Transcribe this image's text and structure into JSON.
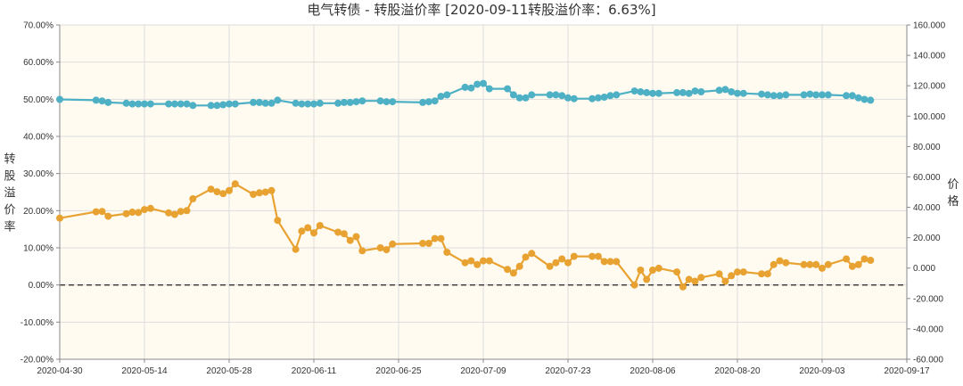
{
  "chart_data": {
    "type": "line",
    "title": "电气转债 - 转股溢价率 [2020-09-11转股溢价率：6.63%]",
    "ylabel_left": "转股溢价率",
    "ylabel_right": "价格",
    "xlabels": [
      "2020-04-30",
      "2020-05-14",
      "2020-05-28",
      "2020-06-11",
      "2020-06-25",
      "2020-07-09",
      "2020-07-23",
      "2020-08-06",
      "2020-08-20",
      "2020-09-03",
      "2020-09-17"
    ],
    "left_ticks": [
      "70.00%",
      "60.00%",
      "50.00%",
      "40.00%",
      "30.00%",
      "20.00%",
      "10.00%",
      "0.00%",
      "-10.00%",
      "-20.00%"
    ],
    "right_ticks": [
      "160.000",
      "140.000",
      "120.000",
      "100.000",
      "80.000",
      "60.000",
      "40.000",
      "20.000",
      "0.000",
      "-20.000",
      "-40.000",
      "-60.000"
    ],
    "x_start": "2020-04-30",
    "x_end": "2020-09-17",
    "ylim_left": [
      -20,
      70
    ],
    "ylim_right": [
      -60,
      160
    ],
    "reference_line": 0,
    "grid": true,
    "colors": {
      "background": "#fffbf0",
      "grid": "#dddddd",
      "premium": "#e8a231",
      "price": "#4eb0c5",
      "reference": "#333333"
    },
    "series": [
      {
        "axis": "left",
        "color": "#e8a231",
        "x": [
          "2020-04-30",
          "2020-05-06",
          "2020-05-07",
          "2020-05-08",
          "2020-05-11",
          "2020-05-12",
          "2020-05-13",
          "2020-05-14",
          "2020-05-15",
          "2020-05-18",
          "2020-05-19",
          "2020-05-20",
          "2020-05-21",
          "2020-05-22",
          "2020-05-25",
          "2020-05-26",
          "2020-05-27",
          "2020-05-28",
          "2020-05-29",
          "2020-06-01",
          "2020-06-02",
          "2020-06-03",
          "2020-06-04",
          "2020-06-05",
          "2020-06-08",
          "2020-06-09",
          "2020-06-10",
          "2020-06-11",
          "2020-06-12",
          "2020-06-15",
          "2020-06-16",
          "2020-06-17",
          "2020-06-18",
          "2020-06-19",
          "2020-06-22",
          "2020-06-23",
          "2020-06-24",
          "2020-06-29",
          "2020-06-30",
          "2020-07-01",
          "2020-07-02",
          "2020-07-03",
          "2020-07-06",
          "2020-07-07",
          "2020-07-08",
          "2020-07-09",
          "2020-07-10",
          "2020-07-13",
          "2020-07-14",
          "2020-07-15",
          "2020-07-16",
          "2020-07-17",
          "2020-07-20",
          "2020-07-21",
          "2020-07-22",
          "2020-07-23",
          "2020-07-24",
          "2020-07-27",
          "2020-07-28",
          "2020-07-29",
          "2020-07-30",
          "2020-07-31",
          "2020-08-03",
          "2020-08-04",
          "2020-08-05",
          "2020-08-06",
          "2020-08-07",
          "2020-08-10",
          "2020-08-11",
          "2020-08-12",
          "2020-08-13",
          "2020-08-14",
          "2020-08-17",
          "2020-08-18",
          "2020-08-19",
          "2020-08-20",
          "2020-08-21",
          "2020-08-24",
          "2020-08-25",
          "2020-08-26",
          "2020-08-27",
          "2020-08-28",
          "2020-08-31",
          "2020-09-01",
          "2020-09-02",
          "2020-09-03",
          "2020-09-04",
          "2020-09-07",
          "2020-09-08",
          "2020-09-09",
          "2020-09-10",
          "2020-09-11"
        ],
        "y": [
          18.0,
          19.7,
          19.8,
          18.5,
          19.2,
          19.6,
          19.5,
          20.3,
          20.6,
          19.4,
          19.0,
          19.8,
          20.0,
          23.2,
          25.8,
          25.1,
          24.6,
          25.4,
          27.2,
          24.4,
          24.8,
          25.0,
          25.4,
          17.4,
          9.6,
          14.5,
          15.4,
          14.0,
          16.0,
          14.2,
          13.8,
          12.0,
          13.0,
          9.2,
          10.0,
          9.5,
          11.0,
          11.2,
          11.2,
          12.5,
          12.5,
          8.8,
          6.0,
          6.5,
          5.5,
          6.5,
          6.5,
          4.2,
          3.2,
          5.0,
          7.5,
          8.5,
          5.0,
          6.0,
          7.0,
          6.0,
          7.7,
          7.7,
          7.7,
          6.3,
          6.3,
          6.3,
          0.0,
          4.0,
          1.5,
          4.0,
          4.5,
          3.5,
          -0.5,
          1.5,
          1.0,
          2.0,
          3.0,
          1.0,
          2.5,
          3.5,
          3.5,
          3.0,
          3.0,
          5.5,
          6.5,
          6.0,
          5.5,
          5.5,
          5.5,
          4.5,
          5.5,
          7.0,
          5.0,
          5.5,
          7.0,
          6.63
        ]
      },
      {
        "axis": "right",
        "color": "#4eb0c5",
        "x": [
          "2020-04-30",
          "2020-05-06",
          "2020-05-07",
          "2020-05-08",
          "2020-05-11",
          "2020-05-12",
          "2020-05-13",
          "2020-05-14",
          "2020-05-15",
          "2020-05-18",
          "2020-05-19",
          "2020-05-20",
          "2020-05-21",
          "2020-05-22",
          "2020-05-25",
          "2020-05-26",
          "2020-05-27",
          "2020-05-28",
          "2020-05-29",
          "2020-06-01",
          "2020-06-02",
          "2020-06-03",
          "2020-06-04",
          "2020-06-05",
          "2020-06-08",
          "2020-06-09",
          "2020-06-10",
          "2020-06-11",
          "2020-06-12",
          "2020-06-15",
          "2020-06-16",
          "2020-06-17",
          "2020-06-18",
          "2020-06-19",
          "2020-06-22",
          "2020-06-23",
          "2020-06-24",
          "2020-06-29",
          "2020-06-30",
          "2020-07-01",
          "2020-07-02",
          "2020-07-03",
          "2020-07-06",
          "2020-07-07",
          "2020-07-08",
          "2020-07-09",
          "2020-07-10",
          "2020-07-13",
          "2020-07-14",
          "2020-07-15",
          "2020-07-16",
          "2020-07-17",
          "2020-07-20",
          "2020-07-21",
          "2020-07-22",
          "2020-07-23",
          "2020-07-24",
          "2020-07-27",
          "2020-07-28",
          "2020-07-29",
          "2020-07-30",
          "2020-07-31",
          "2020-08-03",
          "2020-08-04",
          "2020-08-05",
          "2020-08-06",
          "2020-08-07",
          "2020-08-10",
          "2020-08-11",
          "2020-08-12",
          "2020-08-13",
          "2020-08-14",
          "2020-08-17",
          "2020-08-18",
          "2020-08-19",
          "2020-08-20",
          "2020-08-21",
          "2020-08-24",
          "2020-08-25",
          "2020-08-26",
          "2020-08-27",
          "2020-08-28",
          "2020-08-31",
          "2020-09-01",
          "2020-09-02",
          "2020-09-03",
          "2020-09-04",
          "2020-09-07",
          "2020-09-08",
          "2020-09-09",
          "2020-09-10",
          "2020-09-11"
        ],
        "y": [
          111.0,
          110.5,
          110.0,
          109.0,
          108.5,
          108.0,
          108.0,
          108.0,
          108.0,
          108.0,
          108.0,
          108.0,
          108.0,
          107.0,
          107.0,
          107.0,
          107.5,
          108.0,
          108.0,
          109.0,
          109.0,
          108.5,
          108.5,
          110.5,
          108.5,
          108.0,
          108.0,
          108.0,
          108.5,
          108.5,
          109.0,
          109.0,
          109.5,
          110.0,
          110.0,
          109.5,
          109.5,
          109.0,
          109.5,
          110.0,
          113.0,
          114.0,
          119.0,
          118.5,
          121.0,
          121.5,
          118.0,
          118.0,
          114.0,
          112.0,
          112.0,
          114.0,
          114.0,
          114.0,
          113.5,
          112.0,
          111.5,
          111.5,
          112.0,
          112.5,
          113.5,
          114.0,
          116.5,
          116.0,
          115.5,
          115.0,
          115.0,
          115.5,
          115.5,
          115.0,
          116.5,
          116.0,
          117.0,
          117.5,
          116.0,
          115.0,
          115.0,
          114.5,
          114.0,
          113.5,
          113.5,
          114.0,
          114.0,
          114.5,
          114.0,
          114.0,
          114.0,
          113.5,
          113.5,
          112.0,
          111.0,
          110.5
        ]
      }
    ]
  }
}
